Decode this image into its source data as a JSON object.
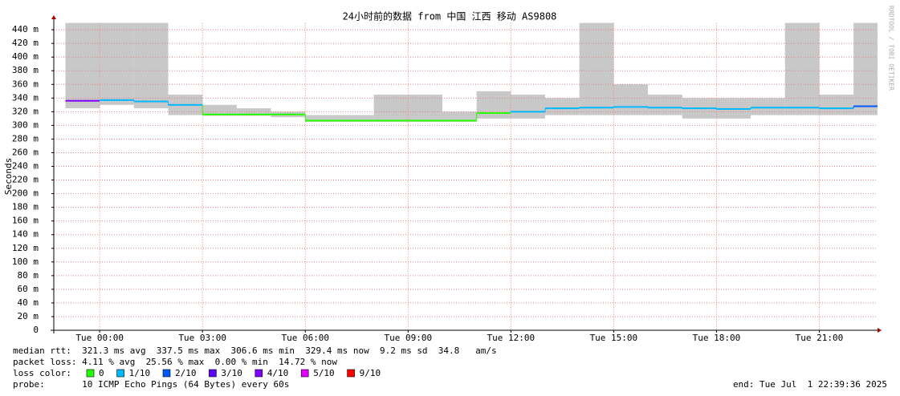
{
  "chart_data": {
    "type": "line",
    "title": "24小时前的数据 from 中国 江西 移动 AS9808",
    "y_label": "Seconds",
    "watermark": "RRDTOOL / TOBI OETIKER",
    "x": [
      -1,
      0,
      1,
      2,
      3,
      4,
      5,
      6,
      7,
      8,
      9,
      10,
      11,
      12,
      13,
      14,
      15,
      16,
      17,
      18,
      19,
      20,
      21,
      22
    ],
    "xlim": [
      -1.34,
      22.7
    ],
    "xticks": [
      {
        "value": 0,
        "label": "Tue 00:00"
      },
      {
        "value": 3,
        "label": "Tue 03:00"
      },
      {
        "value": 6,
        "label": "Tue 06:00"
      },
      {
        "value": 9,
        "label": "Tue 09:00"
      },
      {
        "value": 12,
        "label": "Tue 12:00"
      },
      {
        "value": 15,
        "label": "Tue 15:00"
      },
      {
        "value": 18,
        "label": "Tue 18:00"
      },
      {
        "value": 21,
        "label": "Tue 21:00"
      }
    ],
    "ylim": [
      0,
      0.45
    ],
    "yticks": [
      0,
      {
        "value": 0.02,
        "label": "20 m"
      },
      {
        "value": 0.04,
        "label": "40 m"
      },
      {
        "value": 0.06,
        "label": "60 m"
      },
      {
        "value": 0.08,
        "label": "80 m"
      },
      {
        "value": 0.1,
        "label": "100 m"
      },
      {
        "value": 0.12,
        "label": "120 m"
      },
      {
        "value": 0.14,
        "label": "140 m"
      },
      {
        "value": 0.16,
        "label": "160 m"
      },
      {
        "value": 0.18,
        "label": "180 m"
      },
      {
        "value": 0.2,
        "label": "200 m"
      },
      {
        "value": 0.22,
        "label": "220 m"
      },
      {
        "value": 0.24,
        "label": "240 m"
      },
      {
        "value": 0.26,
        "label": "260 m"
      },
      {
        "value": 0.28,
        "label": "280 m"
      },
      {
        "value": 0.3,
        "label": "300 m"
      },
      {
        "value": 0.32,
        "label": "320 m"
      },
      {
        "value": 0.34,
        "label": "340 m"
      },
      {
        "value": 0.36,
        "label": "360 m"
      },
      {
        "value": 0.38,
        "label": "380 m"
      },
      {
        "value": 0.4,
        "label": "400 m"
      },
      {
        "value": 0.42,
        "label": "420 m"
      },
      {
        "value": 0.44,
        "label": "440 m"
      }
    ],
    "grid": true,
    "values": [
      0.336,
      0.337,
      0.335,
      0.33,
      0.316,
      0.316,
      0.316,
      0.307,
      0.307,
      0.307,
      0.307,
      0.307,
      0.318,
      0.32,
      0.325,
      0.326,
      0.327,
      0.326,
      0.325,
      0.324,
      0.326,
      0.326,
      0.325,
      0.328
    ],
    "loss": [
      4,
      1,
      1,
      1,
      0,
      0,
      0,
      0,
      0,
      0,
      0,
      0,
      0,
      1,
      1,
      1,
      1,
      1,
      1,
      1,
      1,
      1,
      1,
      2
    ],
    "smoke_min": [
      0.325,
      0.33,
      0.325,
      0.315,
      0.314,
      0.314,
      0.312,
      0.305,
      0.305,
      0.305,
      0.305,
      0.305,
      0.31,
      0.31,
      0.315,
      0.315,
      0.315,
      0.315,
      0.31,
      0.31,
      0.315,
      0.315,
      0.315,
      0.315
    ],
    "smoke_max": [
      0.45,
      0.45,
      0.45,
      0.345,
      0.33,
      0.325,
      0.32,
      0.315,
      0.315,
      0.345,
      0.345,
      0.32,
      0.35,
      0.345,
      0.34,
      0.45,
      0.36,
      0.345,
      0.34,
      0.34,
      0.34,
      0.45,
      0.345,
      0.45
    ],
    "smoke_color": "#c8c8c8",
    "legend_title": "loss color:",
    "loss_colors": [
      {
        "label": "0",
        "color": "#26ff00"
      },
      {
        "label": "1/10",
        "color": "#00b8ff"
      },
      {
        "label": "2/10",
        "color": "#0059ff"
      },
      {
        "label": "3/10",
        "color": "#5e00ff"
      },
      {
        "label": "4/10",
        "color": "#7e00ff"
      },
      {
        "label": "5/10",
        "color": "#dd00ff"
      },
      {
        "label": "9/10",
        "color": "#ff0000"
      }
    ],
    "stats": [
      "median rtt:  321.3 ms avg  337.5 ms max  306.6 ms min  329.4 ms now  9.2 ms sd  34.8   am/s",
      "packet loss: 4.11 % avg  25.56 % max  0.00 % min  14.72 % now"
    ],
    "probe": "probe:       10 ICMP Echo Pings (64 Bytes) every 60s",
    "end": "end: Tue Jul  1 22:39:36 2025"
  }
}
